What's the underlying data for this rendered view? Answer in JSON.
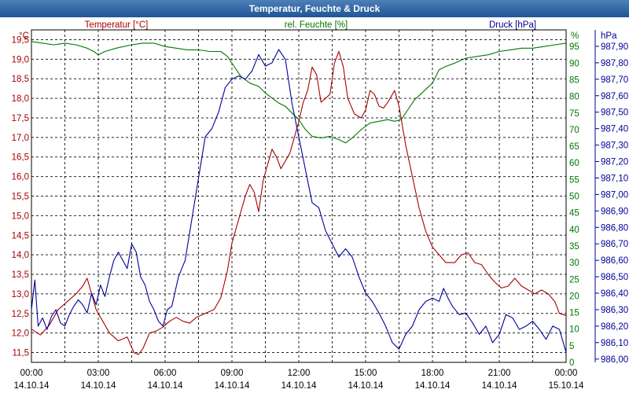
{
  "window": {
    "title": "Temperatur, Feuchte & Druck"
  },
  "chart_data": {
    "type": "line",
    "title": "Temperatur, Feuchte & Druck",
    "x_ticks": [
      {
        "time": "00:00",
        "date": "14.10.14"
      },
      {
        "time": "03:00",
        "date": "14.10.14"
      },
      {
        "time": "06:00",
        "date": "14.10.14"
      },
      {
        "time": "09:00",
        "date": "14.10.14"
      },
      {
        "time": "12:00",
        "date": "14.10.14"
      },
      {
        "time": "15:00",
        "date": "14.10.14"
      },
      {
        "time": "18:00",
        "date": "14.10.14"
      },
      {
        "time": "21:00",
        "date": "14.10.14"
      },
      {
        "time": "00:00",
        "date": "15.10.14"
      }
    ],
    "xlim_hours": [
      0,
      24
    ],
    "axes": {
      "temperature": {
        "label": "Temperatur [°C]",
        "unit": "°C",
        "color": "#aa0000",
        "ylim": [
          11.25,
          19.75
        ],
        "ticks": [
          "19,5",
          "19,0",
          "18,5",
          "18,0",
          "17,5",
          "17,0",
          "16,5",
          "16,0",
          "15,5",
          "15,0",
          "14,5",
          "14,0",
          "13,5",
          "13,0",
          "12,5",
          "12,0",
          "11,5"
        ]
      },
      "humidity": {
        "label": "rel. Feuchte [%]",
        "unit": "%",
        "color": "#007700",
        "ylim": [
          0,
          100
        ],
        "ticks": [
          "95",
          "90",
          "85",
          "80",
          "75",
          "70",
          "65",
          "60",
          "55",
          "50",
          "45",
          "40",
          "35",
          "30",
          "25",
          "20",
          "15",
          "10",
          "5",
          "0"
        ]
      },
      "pressure": {
        "label": "Druck [hPa]",
        "unit": "hPa",
        "color": "#000099",
        "ylim": [
          985.98,
          988.0
        ],
        "ticks": [
          "987,90",
          "987,80",
          "987,70",
          "987,60",
          "987,50",
          "987,40",
          "987,30",
          "987,20",
          "987,10",
          "987,00",
          "986,90",
          "986,80",
          "986,70",
          "986,60",
          "986,50",
          "986,40",
          "986,30",
          "986,20",
          "986,10",
          "986,00"
        ]
      }
    },
    "series": [
      {
        "name": "Temperatur [°C]",
        "axis": "temperature",
        "color": "#aa0000",
        "points": [
          [
            0,
            12.1
          ],
          [
            0.4,
            11.95
          ],
          [
            0.8,
            12.2
          ],
          [
            1.2,
            12.6
          ],
          [
            1.6,
            12.8
          ],
          [
            2.0,
            13.0
          ],
          [
            2.3,
            13.2
          ],
          [
            2.5,
            13.4
          ],
          [
            2.7,
            13.0
          ],
          [
            2.9,
            12.6
          ],
          [
            3.2,
            12.3
          ],
          [
            3.5,
            12.0
          ],
          [
            3.9,
            11.8
          ],
          [
            4.3,
            11.9
          ],
          [
            4.6,
            11.5
          ],
          [
            4.8,
            11.45
          ],
          [
            5.0,
            11.6
          ],
          [
            5.3,
            12.0
          ],
          [
            5.6,
            12.05
          ],
          [
            5.9,
            12.15
          ],
          [
            6.2,
            12.3
          ],
          [
            6.5,
            12.4
          ],
          [
            6.8,
            12.3
          ],
          [
            7.1,
            12.25
          ],
          [
            7.4,
            12.4
          ],
          [
            7.8,
            12.5
          ],
          [
            8.2,
            12.6
          ],
          [
            8.5,
            12.9
          ],
          [
            8.8,
            13.6
          ],
          [
            9.0,
            14.3
          ],
          [
            9.3,
            14.9
          ],
          [
            9.6,
            15.5
          ],
          [
            9.8,
            15.8
          ],
          [
            10.0,
            15.6
          ],
          [
            10.2,
            15.1
          ],
          [
            10.4,
            15.9
          ],
          [
            10.6,
            16.3
          ],
          [
            10.8,
            16.7
          ],
          [
            11.0,
            16.5
          ],
          [
            11.2,
            16.2
          ],
          [
            11.4,
            16.4
          ],
          [
            11.6,
            16.6
          ],
          [
            11.8,
            17.0
          ],
          [
            12.0,
            17.4
          ],
          [
            12.2,
            17.9
          ],
          [
            12.4,
            18.2
          ],
          [
            12.6,
            18.8
          ],
          [
            12.8,
            18.6
          ],
          [
            13.0,
            17.9
          ],
          [
            13.2,
            18.0
          ],
          [
            13.4,
            18.1
          ],
          [
            13.6,
            18.9
          ],
          [
            13.8,
            19.2
          ],
          [
            14.0,
            18.8
          ],
          [
            14.2,
            18.0
          ],
          [
            14.5,
            17.6
          ],
          [
            14.8,
            17.5
          ],
          [
            15.0,
            17.7
          ],
          [
            15.2,
            18.2
          ],
          [
            15.4,
            18.1
          ],
          [
            15.6,
            17.8
          ],
          [
            15.8,
            17.75
          ],
          [
            16.0,
            17.9
          ],
          [
            16.3,
            18.2
          ],
          [
            16.5,
            17.8
          ],
          [
            16.8,
            16.8
          ],
          [
            17.1,
            16.0
          ],
          [
            17.4,
            15.2
          ],
          [
            17.7,
            14.6
          ],
          [
            18.0,
            14.2
          ],
          [
            18.3,
            14.0
          ],
          [
            18.6,
            13.8
          ],
          [
            19.0,
            13.8
          ],
          [
            19.3,
            14.0
          ],
          [
            19.6,
            14.05
          ],
          [
            19.9,
            13.8
          ],
          [
            20.2,
            13.75
          ],
          [
            20.5,
            13.5
          ],
          [
            20.8,
            13.3
          ],
          [
            21.1,
            13.15
          ],
          [
            21.4,
            13.2
          ],
          [
            21.7,
            13.4
          ],
          [
            22.0,
            13.2
          ],
          [
            22.3,
            13.1
          ],
          [
            22.6,
            13.0
          ],
          [
            22.9,
            13.1
          ],
          [
            23.2,
            13.0
          ],
          [
            23.5,
            12.8
          ],
          [
            23.7,
            12.5
          ],
          [
            24.0,
            12.45
          ]
        ]
      },
      {
        "name": "rel. Feuchte [%]",
        "axis": "humidity",
        "color": "#007700",
        "points": [
          [
            0,
            96.5
          ],
          [
            0.5,
            96
          ],
          [
            1.0,
            95.5
          ],
          [
            1.5,
            96
          ],
          [
            2.0,
            95.5
          ],
          [
            2.5,
            94.5
          ],
          [
            2.8,
            93.5
          ],
          [
            3.0,
            92.5
          ],
          [
            3.3,
            93.5
          ],
          [
            3.8,
            94.5
          ],
          [
            4.5,
            95.5
          ],
          [
            5.0,
            96
          ],
          [
            5.5,
            96
          ],
          [
            6.0,
            95
          ],
          [
            6.5,
            94.5
          ],
          [
            7.0,
            94
          ],
          [
            7.5,
            94
          ],
          [
            8.0,
            93.5
          ],
          [
            8.5,
            93.5
          ],
          [
            8.8,
            92
          ],
          [
            9.1,
            89
          ],
          [
            9.4,
            86
          ],
          [
            9.8,
            84
          ],
          [
            10.2,
            83
          ],
          [
            10.5,
            81
          ],
          [
            10.8,
            79.5
          ],
          [
            11.1,
            78
          ],
          [
            11.4,
            77
          ],
          [
            11.7,
            75
          ],
          [
            12.0,
            73
          ],
          [
            12.3,
            70
          ],
          [
            12.6,
            68
          ],
          [
            13.0,
            67.5
          ],
          [
            13.4,
            68
          ],
          [
            13.8,
            67
          ],
          [
            14.1,
            66
          ],
          [
            14.4,
            67.5
          ],
          [
            14.8,
            70
          ],
          [
            15.2,
            72
          ],
          [
            15.6,
            72.5
          ],
          [
            16.0,
            73
          ],
          [
            16.3,
            72.5
          ],
          [
            16.6,
            73
          ],
          [
            16.9,
            76
          ],
          [
            17.2,
            79
          ],
          [
            17.6,
            81.5
          ],
          [
            18.0,
            84
          ],
          [
            18.3,
            88
          ],
          [
            18.6,
            89
          ],
          [
            19.0,
            90
          ],
          [
            19.5,
            91.5
          ],
          [
            20.0,
            92
          ],
          [
            20.5,
            92.5
          ],
          [
            21.0,
            93.5
          ],
          [
            21.5,
            94
          ],
          [
            22.0,
            94.5
          ],
          [
            22.5,
            94.5
          ],
          [
            23.0,
            95
          ],
          [
            23.5,
            95.5
          ],
          [
            24.0,
            96
          ]
        ]
      },
      {
        "name": "Druck [hPa]",
        "axis": "pressure",
        "color": "#000099",
        "points": [
          [
            0,
            986.3
          ],
          [
            0.15,
            986.48
          ],
          [
            0.3,
            986.2
          ],
          [
            0.5,
            986.25
          ],
          [
            0.7,
            986.18
          ],
          [
            0.9,
            986.26
          ],
          [
            1.1,
            986.3
          ],
          [
            1.3,
            986.22
          ],
          [
            1.5,
            986.2
          ],
          [
            1.7,
            986.27
          ],
          [
            1.9,
            986.32
          ],
          [
            2.1,
            986.36
          ],
          [
            2.3,
            986.33
          ],
          [
            2.5,
            986.28
          ],
          [
            2.7,
            986.4
          ],
          [
            2.9,
            986.33
          ],
          [
            3.1,
            986.45
          ],
          [
            3.3,
            986.38
          ],
          [
            3.5,
            986.5
          ],
          [
            3.7,
            986.6
          ],
          [
            3.9,
            986.65
          ],
          [
            4.1,
            986.6
          ],
          [
            4.3,
            986.55
          ],
          [
            4.5,
            986.7
          ],
          [
            4.7,
            986.65
          ],
          [
            4.9,
            986.5
          ],
          [
            5.1,
            986.45
          ],
          [
            5.3,
            986.35
          ],
          [
            5.5,
            986.3
          ],
          [
            5.7,
            986.23
          ],
          [
            5.9,
            986.2
          ],
          [
            6.1,
            986.3
          ],
          [
            6.3,
            986.32
          ],
          [
            6.6,
            986.5
          ],
          [
            6.9,
            986.6
          ],
          [
            7.2,
            986.85
          ],
          [
            7.5,
            987.1
          ],
          [
            7.8,
            987.35
          ],
          [
            8.1,
            987.4
          ],
          [
            8.4,
            987.5
          ],
          [
            8.7,
            987.65
          ],
          [
            9.0,
            987.7
          ],
          [
            9.3,
            987.72
          ],
          [
            9.6,
            987.7
          ],
          [
            9.9,
            987.75
          ],
          [
            10.2,
            987.85
          ],
          [
            10.5,
            987.78
          ],
          [
            10.8,
            987.8
          ],
          [
            11.1,
            987.88
          ],
          [
            11.4,
            987.82
          ],
          [
            11.7,
            987.55
          ],
          [
            12.0,
            987.35
          ],
          [
            12.3,
            987.15
          ],
          [
            12.6,
            986.95
          ],
          [
            12.9,
            986.92
          ],
          [
            13.2,
            986.78
          ],
          [
            13.5,
            986.7
          ],
          [
            13.8,
            986.62
          ],
          [
            14.1,
            986.67
          ],
          [
            14.4,
            986.62
          ],
          [
            14.7,
            986.5
          ],
          [
            15.0,
            986.4
          ],
          [
            15.3,
            986.35
          ],
          [
            15.6,
            986.28
          ],
          [
            15.9,
            986.2
          ],
          [
            16.2,
            986.1
          ],
          [
            16.5,
            986.06
          ],
          [
            16.8,
            986.15
          ],
          [
            17.1,
            986.2
          ],
          [
            17.4,
            986.3
          ],
          [
            17.7,
            986.35
          ],
          [
            18.0,
            986.37
          ],
          [
            18.3,
            986.35
          ],
          [
            18.5,
            986.43
          ],
          [
            18.7,
            986.37
          ],
          [
            18.9,
            986.32
          ],
          [
            19.2,
            986.27
          ],
          [
            19.5,
            986.28
          ],
          [
            19.8,
            986.22
          ],
          [
            20.1,
            986.15
          ],
          [
            20.4,
            986.2
          ],
          [
            20.7,
            986.1
          ],
          [
            21.0,
            986.15
          ],
          [
            21.3,
            986.27
          ],
          [
            21.6,
            986.25
          ],
          [
            21.9,
            986.18
          ],
          [
            22.2,
            986.2
          ],
          [
            22.5,
            986.23
          ],
          [
            22.8,
            986.18
          ],
          [
            23.1,
            986.12
          ],
          [
            23.4,
            986.2
          ],
          [
            23.7,
            986.18
          ],
          [
            24.0,
            986.04
          ]
        ]
      }
    ],
    "grid": true,
    "legend": "axis titles at top (left, center, right)"
  }
}
